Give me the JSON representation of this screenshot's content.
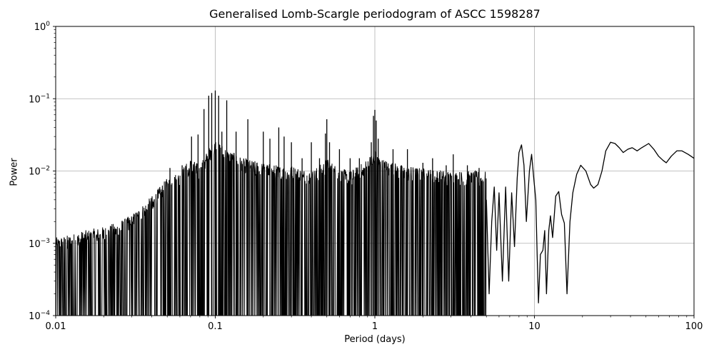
{
  "chart_data": {
    "type": "line",
    "title": "Generalised Lomb-Scargle periodogram of ASCC 1598287",
    "xlabel": "Period (days)",
    "ylabel": "Power",
    "x_scale": "log",
    "y_scale": "log",
    "xlim": [
      0.01,
      100
    ],
    "ylim": [
      0.0001,
      1
    ],
    "grid": true,
    "line_color": "#000000",
    "grid_color": "#b0b0b0",
    "x_ticks": [
      {
        "value": 0.01,
        "label": "0.01"
      },
      {
        "value": 0.1,
        "label": "0.1"
      },
      {
        "value": 1,
        "label": "1"
      },
      {
        "value": 10,
        "label": "10"
      },
      {
        "value": 100,
        "label": "100"
      }
    ],
    "y_ticks": [
      {
        "value": 0.0001,
        "base": "10",
        "exp": "−4"
      },
      {
        "value": 0.001,
        "base": "10",
        "exp": "−3"
      },
      {
        "value": 0.01,
        "base": "10",
        "exp": "−2"
      },
      {
        "value": 0.1,
        "base": "10",
        "exp": "−1"
      },
      {
        "value": 1,
        "base": "10",
        "exp": "0"
      }
    ],
    "series": [
      {
        "envelope": [
          [
            0.01,
            0.0012
          ],
          [
            0.012,
            0.0013
          ],
          [
            0.015,
            0.0015
          ],
          [
            0.02,
            0.0017
          ],
          [
            0.025,
            0.002
          ],
          [
            0.03,
            0.0025
          ],
          [
            0.04,
            0.0045
          ],
          [
            0.05,
            0.008
          ],
          [
            0.06,
            0.01
          ],
          [
            0.07,
            0.015
          ],
          [
            0.08,
            0.012
          ],
          [
            0.09,
            0.02
          ],
          [
            0.1,
            0.028
          ],
          [
            0.12,
            0.02
          ],
          [
            0.15,
            0.015
          ],
          [
            0.2,
            0.013
          ],
          [
            0.25,
            0.012
          ],
          [
            0.3,
            0.012
          ],
          [
            0.4,
            0.01
          ],
          [
            0.45,
            0.012
          ],
          [
            0.5,
            0.015
          ],
          [
            0.6,
            0.011
          ],
          [
            0.7,
            0.01
          ],
          [
            0.8,
            0.012
          ],
          [
            0.9,
            0.015
          ],
          [
            1.0,
            0.02
          ],
          [
            1.1,
            0.015
          ],
          [
            1.5,
            0.012
          ],
          [
            2.0,
            0.011
          ],
          [
            3.0,
            0.01
          ],
          [
            5.0,
            0.01
          ],
          [
            6.0,
            0.009
          ]
        ],
        "peaks": [
          [
            0.052,
            0.011
          ],
          [
            0.062,
            0.012
          ],
          [
            0.071,
            0.03
          ],
          [
            0.078,
            0.032
          ],
          [
            0.085,
            0.072
          ],
          [
            0.091,
            0.11
          ],
          [
            0.095,
            0.12
          ],
          [
            0.1,
            0.13
          ],
          [
            0.105,
            0.11
          ],
          [
            0.11,
            0.035
          ],
          [
            0.118,
            0.095
          ],
          [
            0.135,
            0.035
          ],
          [
            0.16,
            0.052
          ],
          [
            0.2,
            0.035
          ],
          [
            0.22,
            0.028
          ],
          [
            0.25,
            0.04
          ],
          [
            0.27,
            0.03
          ],
          [
            0.3,
            0.025
          ],
          [
            0.35,
            0.015
          ],
          [
            0.4,
            0.025
          ],
          [
            0.45,
            0.015
          ],
          [
            0.49,
            0.033
          ],
          [
            0.5,
            0.052
          ],
          [
            0.52,
            0.025
          ],
          [
            0.6,
            0.02
          ],
          [
            0.7,
            0.015
          ],
          [
            0.8,
            0.015
          ],
          [
            0.95,
            0.025
          ],
          [
            0.98,
            0.058
          ],
          [
            1.0,
            0.07
          ],
          [
            1.02,
            0.05
          ],
          [
            1.05,
            0.028
          ],
          [
            1.3,
            0.02
          ],
          [
            1.6,
            0.02
          ],
          [
            2.0,
            0.013
          ],
          [
            2.3,
            0.015
          ],
          [
            2.8,
            0.012
          ],
          [
            3.1,
            0.017
          ],
          [
            3.8,
            0.012
          ],
          [
            4.5,
            0.011
          ]
        ],
        "smooth": [
          [
            5.0,
            0.004
          ],
          [
            5.2,
            0.0002
          ],
          [
            5.4,
            0.002
          ],
          [
            5.6,
            0.006
          ],
          [
            5.8,
            0.0008
          ],
          [
            6.0,
            0.005
          ],
          [
            6.3,
            0.0003
          ],
          [
            6.6,
            0.006
          ],
          [
            6.9,
            0.0003
          ],
          [
            7.2,
            0.005
          ],
          [
            7.5,
            0.0009
          ],
          [
            7.8,
            0.008
          ],
          [
            8.0,
            0.018
          ],
          [
            8.3,
            0.023
          ],
          [
            8.6,
            0.012
          ],
          [
            8.9,
            0.002
          ],
          [
            9.3,
            0.01
          ],
          [
            9.6,
            0.017
          ],
          [
            9.9,
            0.008
          ],
          [
            10.2,
            0.004
          ],
          [
            10.4,
            0.0007
          ],
          [
            10.6,
            0.00015
          ],
          [
            10.9,
            0.0007
          ],
          [
            11.3,
            0.0008
          ],
          [
            11.6,
            0.0015
          ],
          [
            11.9,
            0.0002
          ],
          [
            12.3,
            0.0015
          ],
          [
            12.6,
            0.0024
          ],
          [
            13.0,
            0.0012
          ],
          [
            13.6,
            0.0045
          ],
          [
            14.2,
            0.0052
          ],
          [
            14.8,
            0.0025
          ],
          [
            15.4,
            0.0019
          ],
          [
            16.0,
            0.0002
          ],
          [
            16.7,
            0.002
          ],
          [
            17.4,
            0.005
          ],
          [
            18.4,
            0.009
          ],
          [
            19.5,
            0.012
          ],
          [
            21.0,
            0.01
          ],
          [
            22.5,
            0.0065
          ],
          [
            23.5,
            0.0058
          ],
          [
            25.0,
            0.0065
          ],
          [
            26.5,
            0.01
          ],
          [
            28.0,
            0.019
          ],
          [
            30.0,
            0.025
          ],
          [
            32.0,
            0.024
          ],
          [
            34.0,
            0.021
          ],
          [
            36.0,
            0.018
          ],
          [
            38.5,
            0.02
          ],
          [
            41.0,
            0.021
          ],
          [
            44.0,
            0.019
          ],
          [
            47.0,
            0.021
          ],
          [
            52.0,
            0.024
          ],
          [
            56.0,
            0.02
          ],
          [
            60.0,
            0.016
          ],
          [
            64.0,
            0.014
          ],
          [
            67.0,
            0.013
          ],
          [
            72.0,
            0.016
          ],
          [
            78.0,
            0.019
          ],
          [
            84.0,
            0.019
          ],
          [
            92.0,
            0.017
          ],
          [
            100.0,
            0.015
          ]
        ]
      }
    ]
  }
}
